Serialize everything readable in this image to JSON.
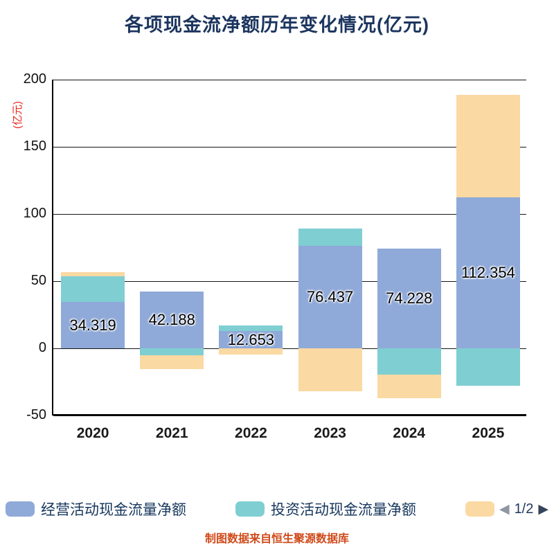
{
  "chart_data": {
    "type": "bar",
    "stacked": true,
    "title": "各项现金流净额历年变化情况(亿元)",
    "y_unit": "(亿元)",
    "categories": [
      "2020",
      "2021",
      "2022",
      "2023",
      "2024",
      "2025"
    ],
    "series": [
      {
        "name": "经营活动现金流量净额",
        "color": "#8fa9d8",
        "values": [
          34.319,
          42.188,
          12.653,
          76.437,
          74.228,
          112.354
        ]
      },
      {
        "name": "投资活动现金流量净额",
        "color": "#7fced2",
        "values": [
          19.5,
          -5.0,
          4.3,
          12.8,
          -19.6,
          -27.8
        ]
      },
      {
        "name": "",
        "color": "#fbd9a3",
        "values": [
          2.8,
          -10.5,
          -4.6,
          -31.8,
          -17.3,
          76.4
        ]
      }
    ],
    "bar_labels": [
      "34.319",
      "42.188",
      "12.653",
      "76.437",
      "74.228",
      "112.354"
    ],
    "ylim": [
      -50,
      200
    ],
    "yticks": [
      200,
      150,
      100,
      50,
      0,
      -50
    ],
    "grid": true,
    "legend_position": "bottom"
  },
  "legend": {
    "items": [
      {
        "label": "经营活动现金流量净额",
        "color": "#8fa9d8"
      },
      {
        "label": "投资活动现金流量净额",
        "color": "#7fced2"
      },
      {
        "label": "",
        "color": "#fbd9a3"
      }
    ],
    "page_indicator": "1/2",
    "prev_icon": "◀",
    "next_icon": "▶"
  },
  "footer": {
    "source": "制图数据来自恒生聚源数据库"
  }
}
